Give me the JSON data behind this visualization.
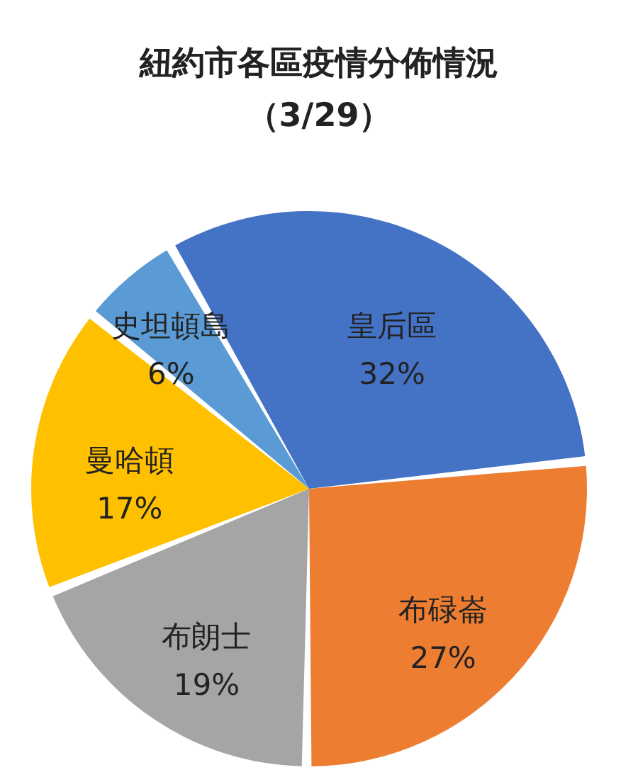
{
  "chart_data": {
    "type": "pie",
    "title": "紐約市各區疫情分佈情況",
    "subtitle": "（3/29）",
    "categories": [
      "皇后區",
      "布碌崙",
      "布朗士",
      "曼哈頓",
      "史坦頓島"
    ],
    "values": [
      32,
      27,
      19,
      17,
      6
    ],
    "value_labels": [
      "32%",
      "27%",
      "19%",
      "17%",
      "6%"
    ],
    "colors": [
      "#4472c4",
      "#ed7d31",
      "#a5a5a5",
      "#ffc000",
      "#5b9bd5"
    ]
  }
}
